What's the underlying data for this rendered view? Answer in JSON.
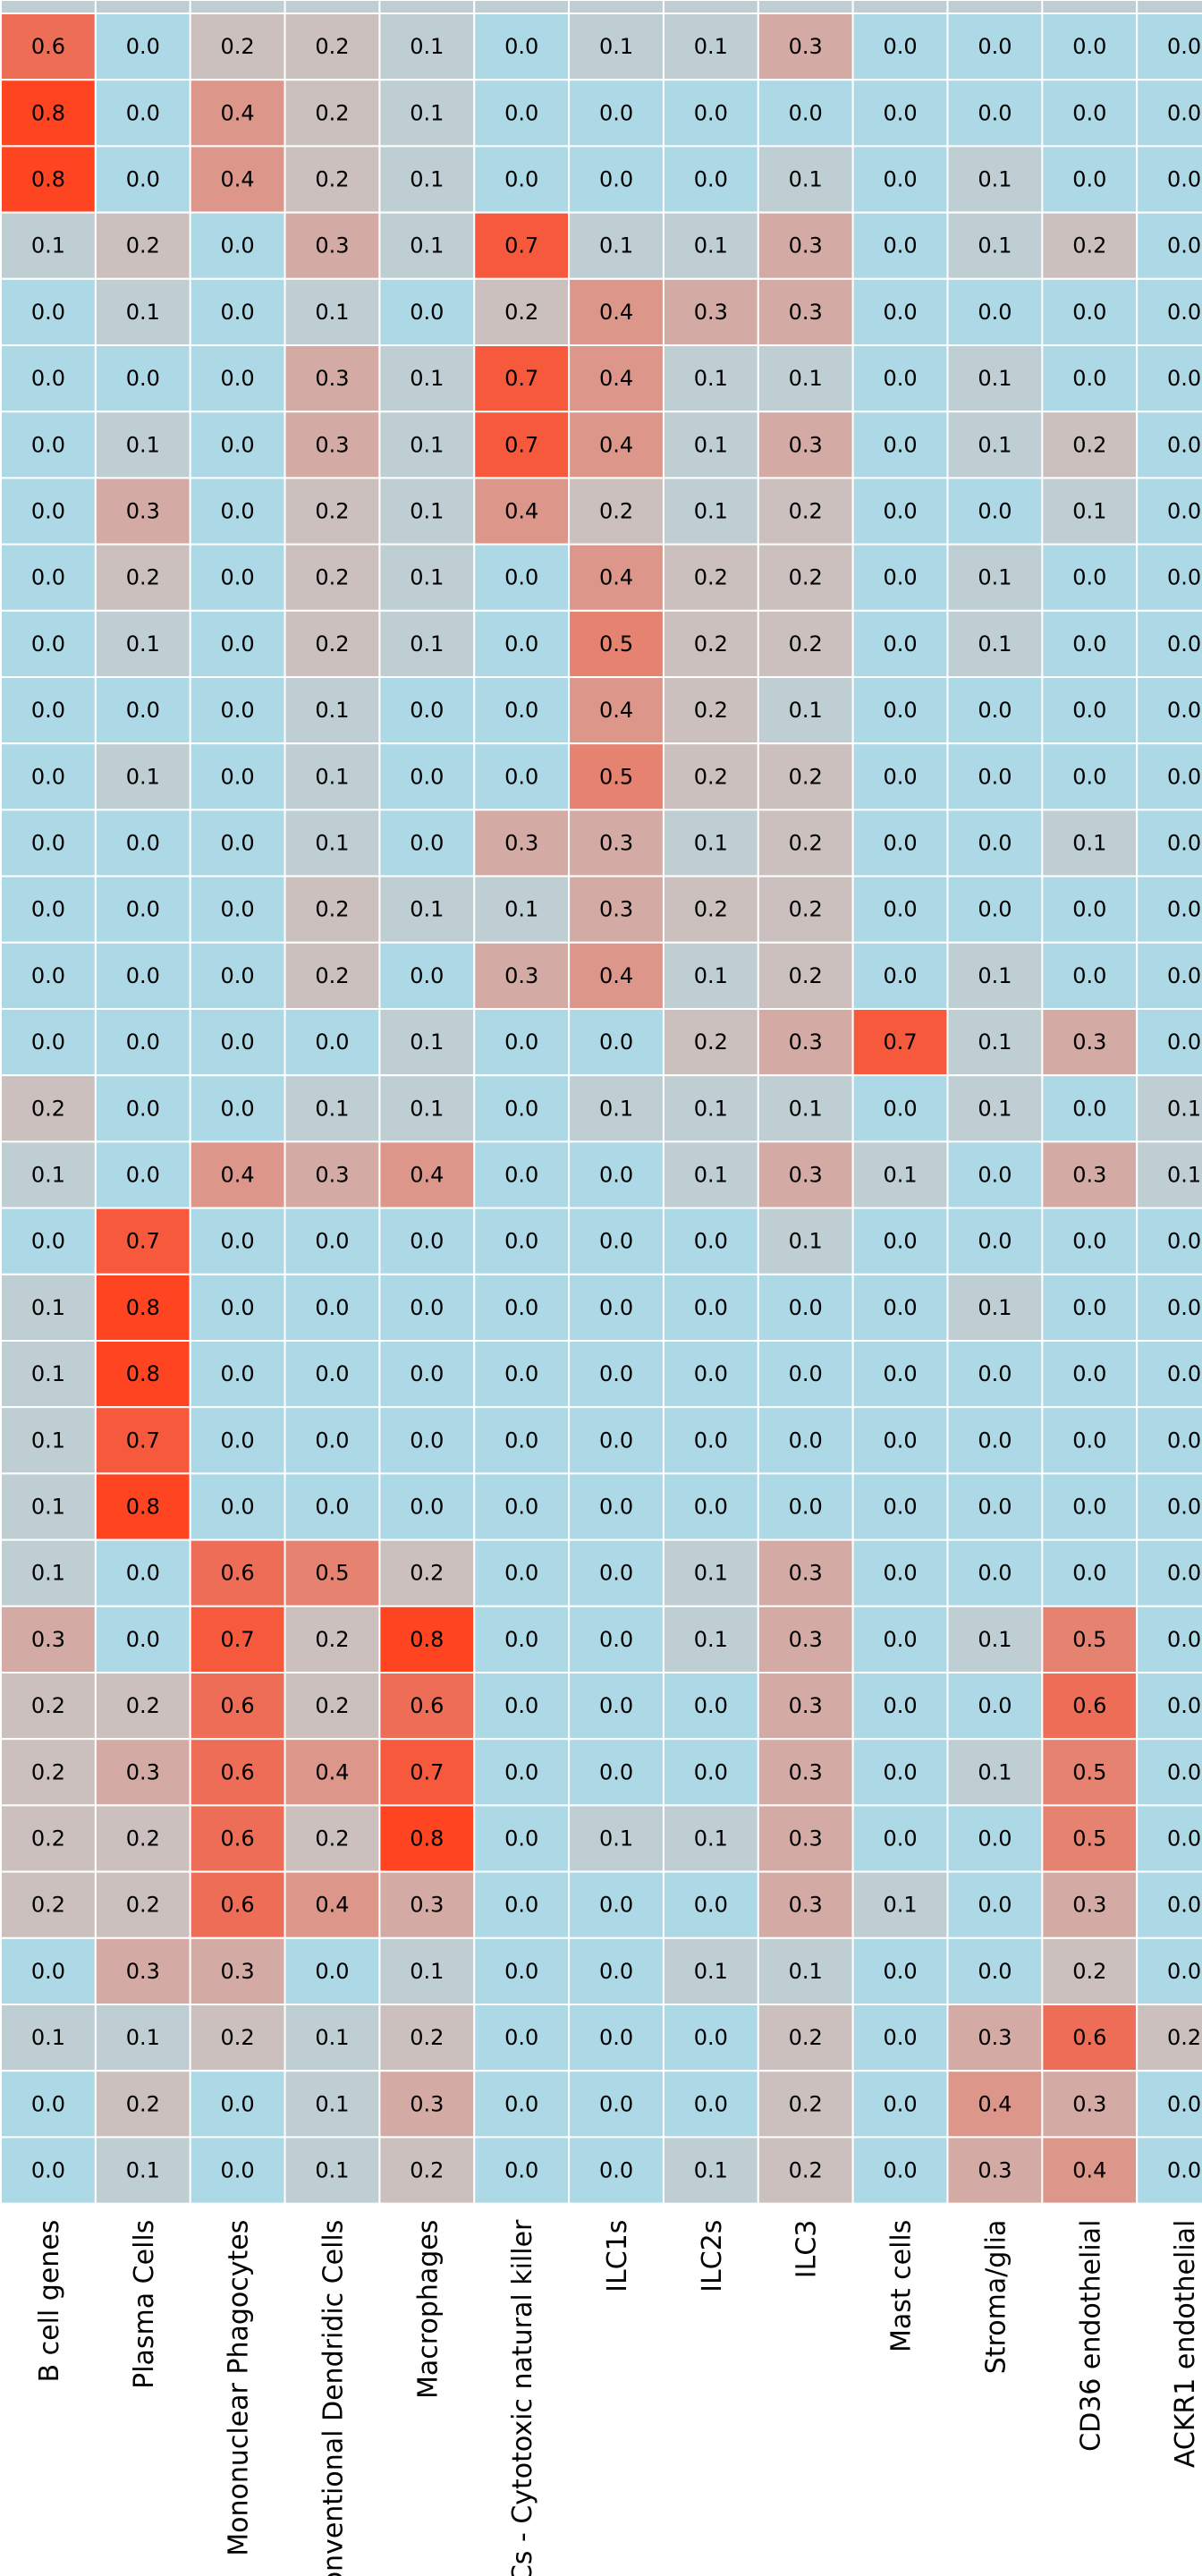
{
  "chart_data": {
    "type": "heatmap",
    "title": "",
    "xlabel": "",
    "ylabel": "",
    "grid": true,
    "color_scale": {
      "min": 0.0,
      "max": 0.8,
      "low": "#add8e6",
      "mid": "#c8c8c8",
      "high": "#ff4422"
    },
    "columns": [
      "B cell genes",
      "Plasma Cells",
      "Mononuclear Phagocytes",
      "Conventional Dendridic Cells",
      "Macrophages",
      "ILCs - Cytotoxic natural killer",
      "ILC1s",
      "ILC2s",
      "ILC3",
      "Mast cells",
      "Stroma/glia",
      "CD36 endothelial",
      "ACKR1 endothelial"
    ],
    "values": [
      [
        0.6,
        0.0,
        0.2,
        0.2,
        0.1,
        0.0,
        0.1,
        0.1,
        0.3,
        0.0,
        0.0,
        0.0,
        0.0
      ],
      [
        0.8,
        0.0,
        0.4,
        0.2,
        0.1,
        0.0,
        0.0,
        0.0,
        0.0,
        0.0,
        0.0,
        0.0,
        0.0
      ],
      [
        0.8,
        0.0,
        0.4,
        0.2,
        0.1,
        0.0,
        0.0,
        0.0,
        0.1,
        0.0,
        0.1,
        0.0,
        0.0
      ],
      [
        0.1,
        0.2,
        0.0,
        0.3,
        0.1,
        0.7,
        0.1,
        0.1,
        0.3,
        0.0,
        0.1,
        0.2,
        0.0
      ],
      [
        0.0,
        0.1,
        0.0,
        0.1,
        0.0,
        0.2,
        0.4,
        0.3,
        0.3,
        0.0,
        0.0,
        0.0,
        0.0
      ],
      [
        0.0,
        0.0,
        0.0,
        0.3,
        0.1,
        0.7,
        0.4,
        0.1,
        0.1,
        0.0,
        0.1,
        0.0,
        0.0
      ],
      [
        0.0,
        0.1,
        0.0,
        0.3,
        0.1,
        0.7,
        0.4,
        0.1,
        0.3,
        0.0,
        0.1,
        0.2,
        0.0
      ],
      [
        0.0,
        0.3,
        0.0,
        0.2,
        0.1,
        0.4,
        0.2,
        0.1,
        0.2,
        0.0,
        0.0,
        0.1,
        0.0
      ],
      [
        0.0,
        0.2,
        0.0,
        0.2,
        0.1,
        0.0,
        0.4,
        0.2,
        0.2,
        0.0,
        0.1,
        0.0,
        0.0
      ],
      [
        0.0,
        0.1,
        0.0,
        0.2,
        0.1,
        0.0,
        0.5,
        0.2,
        0.2,
        0.0,
        0.1,
        0.0,
        0.0
      ],
      [
        0.0,
        0.0,
        0.0,
        0.1,
        0.0,
        0.0,
        0.4,
        0.2,
        0.1,
        0.0,
        0.0,
        0.0,
        0.0
      ],
      [
        0.0,
        0.1,
        0.0,
        0.1,
        0.0,
        0.0,
        0.5,
        0.2,
        0.2,
        0.0,
        0.0,
        0.0,
        0.0
      ],
      [
        0.0,
        0.0,
        0.0,
        0.1,
        0.0,
        0.3,
        0.3,
        0.1,
        0.2,
        0.0,
        0.0,
        0.1,
        0.0
      ],
      [
        0.0,
        0.0,
        0.0,
        0.2,
        0.1,
        0.1,
        0.3,
        0.2,
        0.2,
        0.0,
        0.0,
        0.0,
        0.0
      ],
      [
        0.0,
        0.0,
        0.0,
        0.2,
        0.0,
        0.3,
        0.4,
        0.1,
        0.2,
        0.0,
        0.1,
        0.0,
        0.0
      ],
      [
        0.0,
        0.0,
        0.0,
        0.0,
        0.1,
        0.0,
        0.0,
        0.2,
        0.3,
        0.7,
        0.1,
        0.3,
        0.0
      ],
      [
        0.2,
        0.0,
        0.0,
        0.1,
        0.1,
        0.0,
        0.1,
        0.1,
        0.1,
        0.0,
        0.1,
        0.0,
        0.1
      ],
      [
        0.1,
        0.0,
        0.4,
        0.3,
        0.4,
        0.0,
        0.0,
        0.1,
        0.3,
        0.1,
        0.0,
        0.3,
        0.1
      ],
      [
        0.0,
        0.7,
        0.0,
        0.0,
        0.0,
        0.0,
        0.0,
        0.0,
        0.1,
        0.0,
        0.0,
        0.0,
        0.0
      ],
      [
        0.1,
        0.8,
        0.0,
        0.0,
        0.0,
        0.0,
        0.0,
        0.0,
        0.0,
        0.0,
        0.1,
        0.0,
        0.0
      ],
      [
        0.1,
        0.8,
        0.0,
        0.0,
        0.0,
        0.0,
        0.0,
        0.0,
        0.0,
        0.0,
        0.0,
        0.0,
        0.0
      ],
      [
        0.1,
        0.7,
        0.0,
        0.0,
        0.0,
        0.0,
        0.0,
        0.0,
        0.0,
        0.0,
        0.0,
        0.0,
        0.0
      ],
      [
        0.1,
        0.8,
        0.0,
        0.0,
        0.0,
        0.0,
        0.0,
        0.0,
        0.0,
        0.0,
        0.0,
        0.0,
        0.0
      ],
      [
        0.1,
        0.0,
        0.6,
        0.5,
        0.2,
        0.0,
        0.0,
        0.1,
        0.3,
        0.0,
        0.0,
        0.0,
        0.0
      ],
      [
        0.3,
        0.0,
        0.7,
        0.2,
        0.8,
        0.0,
        0.0,
        0.1,
        0.3,
        0.0,
        0.1,
        0.5,
        0.0
      ],
      [
        0.2,
        0.2,
        0.6,
        0.2,
        0.6,
        0.0,
        0.0,
        0.0,
        0.3,
        0.0,
        0.0,
        0.6,
        0.0
      ],
      [
        0.2,
        0.3,
        0.6,
        0.4,
        0.7,
        0.0,
        0.0,
        0.0,
        0.3,
        0.0,
        0.1,
        0.5,
        0.0
      ],
      [
        0.2,
        0.2,
        0.6,
        0.2,
        0.8,
        0.0,
        0.1,
        0.1,
        0.3,
        0.0,
        0.0,
        0.5,
        0.0
      ],
      [
        0.2,
        0.2,
        0.6,
        0.4,
        0.3,
        0.0,
        0.0,
        0.0,
        0.3,
        0.1,
        0.0,
        0.3,
        0.0
      ],
      [
        0.0,
        0.3,
        0.3,
        0.0,
        0.1,
        0.0,
        0.0,
        0.1,
        0.1,
        0.0,
        0.0,
        0.2,
        0.0
      ],
      [
        0.1,
        0.1,
        0.2,
        0.1,
        0.2,
        0.0,
        0.0,
        0.0,
        0.2,
        0.0,
        0.3,
        0.6,
        0.2
      ],
      [
        0.0,
        0.2,
        0.0,
        0.1,
        0.3,
        0.0,
        0.0,
        0.0,
        0.2,
        0.0,
        0.4,
        0.3,
        0.0
      ],
      [
        0.0,
        0.1,
        0.0,
        0.1,
        0.2,
        0.0,
        0.0,
        0.1,
        0.2,
        0.0,
        0.3,
        0.4,
        0.0
      ]
    ]
  }
}
